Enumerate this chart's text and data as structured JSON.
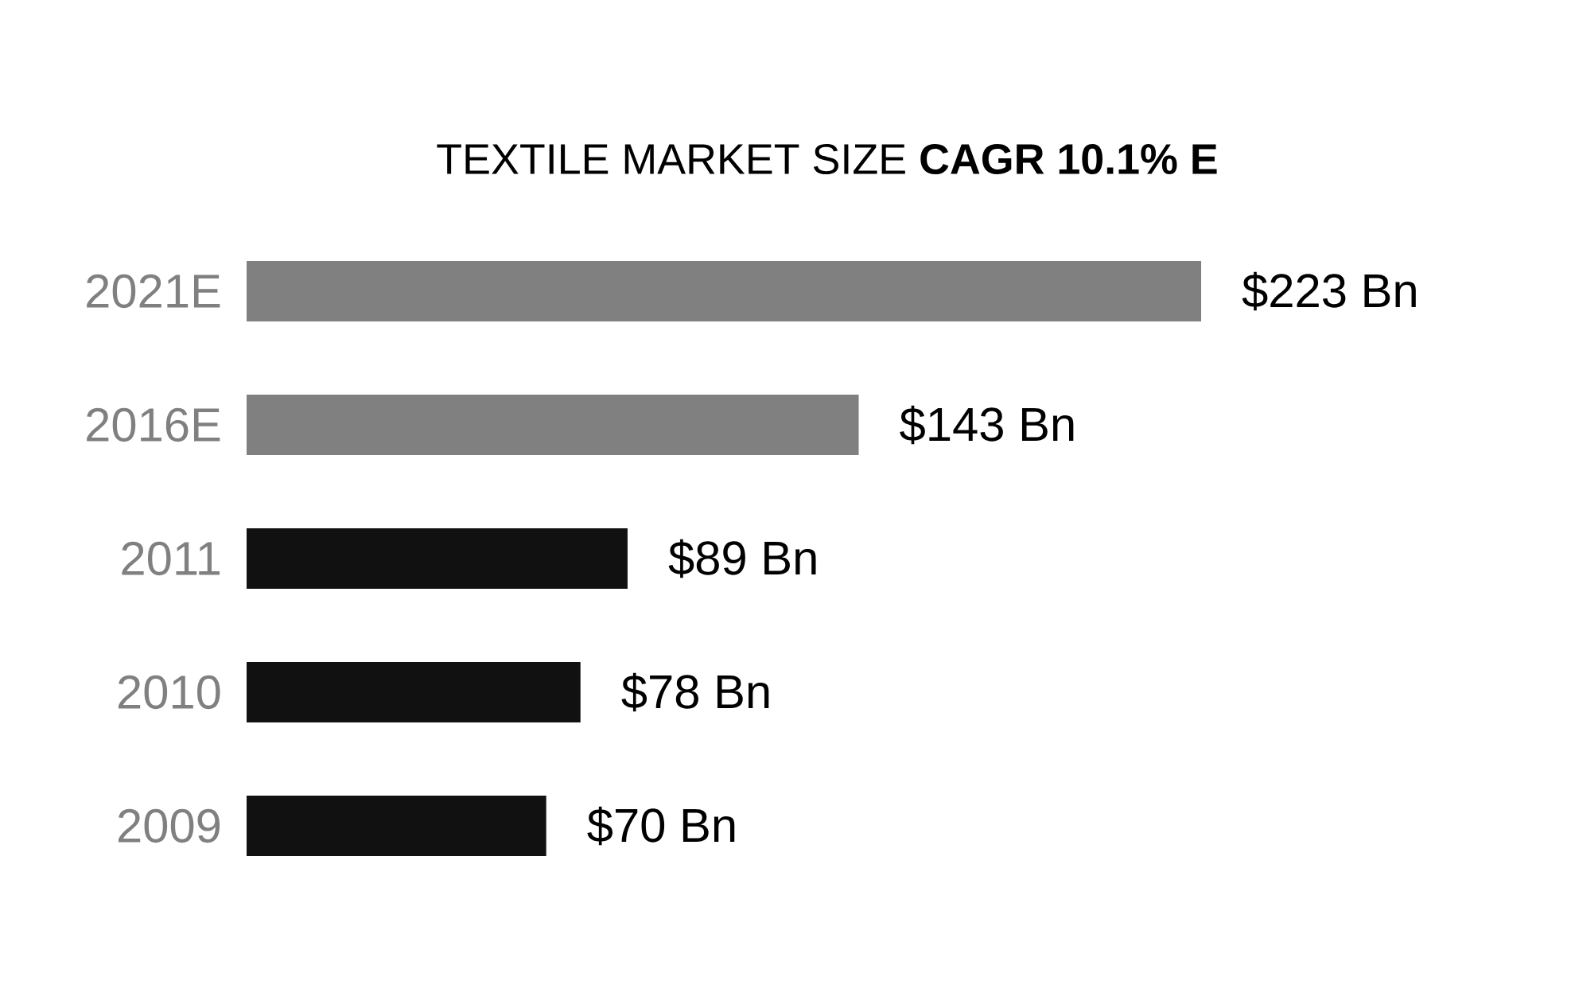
{
  "chart_data": {
    "type": "bar",
    "orientation": "horizontal",
    "title": "TEXTILE MARKET SIZE  **CAGR 10.1% E**",
    "categories": [
      "2021E",
      "2016E",
      "2011",
      "2010",
      "2009"
    ],
    "values": [
      223,
      143,
      89,
      78,
      70
    ],
    "colors": [
      "#808080",
      "#808080",
      "#111111",
      "#111111",
      "#111111"
    ],
    "value_labels": [
      "$223 Bn",
      "$143 Bn",
      "$89 Bn",
      "$78 Bn",
      "$70 Bn"
    ]
  }
}
